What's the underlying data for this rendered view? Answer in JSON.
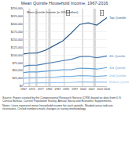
{
  "chart_data": {
    "type": "line",
    "title": "Mean Quintile Household Income, 1967-2016",
    "y_label": "Mean Quintile Income (in 2016 dollars)",
    "x": [
      1967,
      1970,
      1975,
      1980,
      1985,
      1990,
      1995,
      2000,
      2005,
      2010,
      2016
    ],
    "series": [
      {
        "name": "Top Quintile",
        "color": "#2e5c8a",
        "values": [
          104000,
          106000,
          107000,
          116000,
          131000,
          146000,
          171000,
          199000,
          204000,
          197000,
          221000
        ]
      },
      {
        "name": "4th Quintile",
        "color": "#4a7fb5",
        "values": [
          64000,
          67000,
          68000,
          73000,
          77000,
          82000,
          86000,
          95000,
          96000,
          92000,
          97000
        ]
      },
      {
        "name": "3rd Quintile",
        "color": "#5b9bd5",
        "values": [
          44000,
          46000,
          46000,
          48000,
          50000,
          53000,
          53000,
          58000,
          57000,
          55000,
          60000
        ]
      },
      {
        "name": "2nd Quintile",
        "color": "#7fb3e0",
        "values": [
          26000,
          27000,
          28000,
          29000,
          29000,
          31000,
          31000,
          34000,
          33000,
          31000,
          34000
        ]
      },
      {
        "name": "Bottom Quintile",
        "color": "#9dc3e6",
        "values": [
          9500,
          10500,
          10800,
          11000,
          11000,
          11500,
          12000,
          13500,
          12800,
          12000,
          13000
        ]
      }
    ],
    "recessions": [
      [
        1969.9,
        1970.9
      ],
      [
        1973.9,
        1975.2
      ],
      [
        1980.0,
        1980.5
      ],
      [
        1981.5,
        1982.9
      ],
      [
        1990.5,
        1991.2
      ],
      [
        2001.2,
        2001.9
      ],
      [
        2007.9,
        2009.5
      ]
    ],
    "recession_color": "#d9d9d9",
    "annotations": [
      {
        "text": "1",
        "x": 1993,
        "y": 237000
      },
      {
        "text": "2",
        "x": 2013,
        "y": 237000
      }
    ],
    "notes": [
      "Source: Figure created by the Congressional Research Service (CRS) based on data from U.S. Census Bureau, Current Population Survey, Annual Social and Economic Supplements.",
      "Notes: Lines represent mean household income for each quintile. Shaded areas indicate recessions. Circled numbers mark changes in survey methodology."
    ],
    "xlim": [
      1967,
      2016
    ],
    "xticks": [
      1967,
      1972,
      1977,
      1982,
      1987,
      1992,
      1997,
      2002,
      2007,
      2012,
      2016
    ],
    "ylim": [
      0,
      250000
    ],
    "yticks": [
      {
        "value": 0,
        "label": "$0"
      },
      {
        "value": 25000,
        "label": "$25,000"
      },
      {
        "value": 50000,
        "label": "$50,000"
      },
      {
        "value": 75000,
        "label": "$75,000"
      },
      {
        "value": 100000,
        "label": "$100,000"
      },
      {
        "value": 125000,
        "label": "$125,000"
      },
      {
        "value": 150000,
        "label": "$150,000"
      },
      {
        "value": 175000,
        "label": "$175,000"
      },
      {
        "value": 200000,
        "label": "$200,000"
      },
      {
        "value": 225000,
        "label": "$225,000"
      },
      {
        "value": 250000,
        "label": "$250,000"
      }
    ],
    "grid": true
  }
}
